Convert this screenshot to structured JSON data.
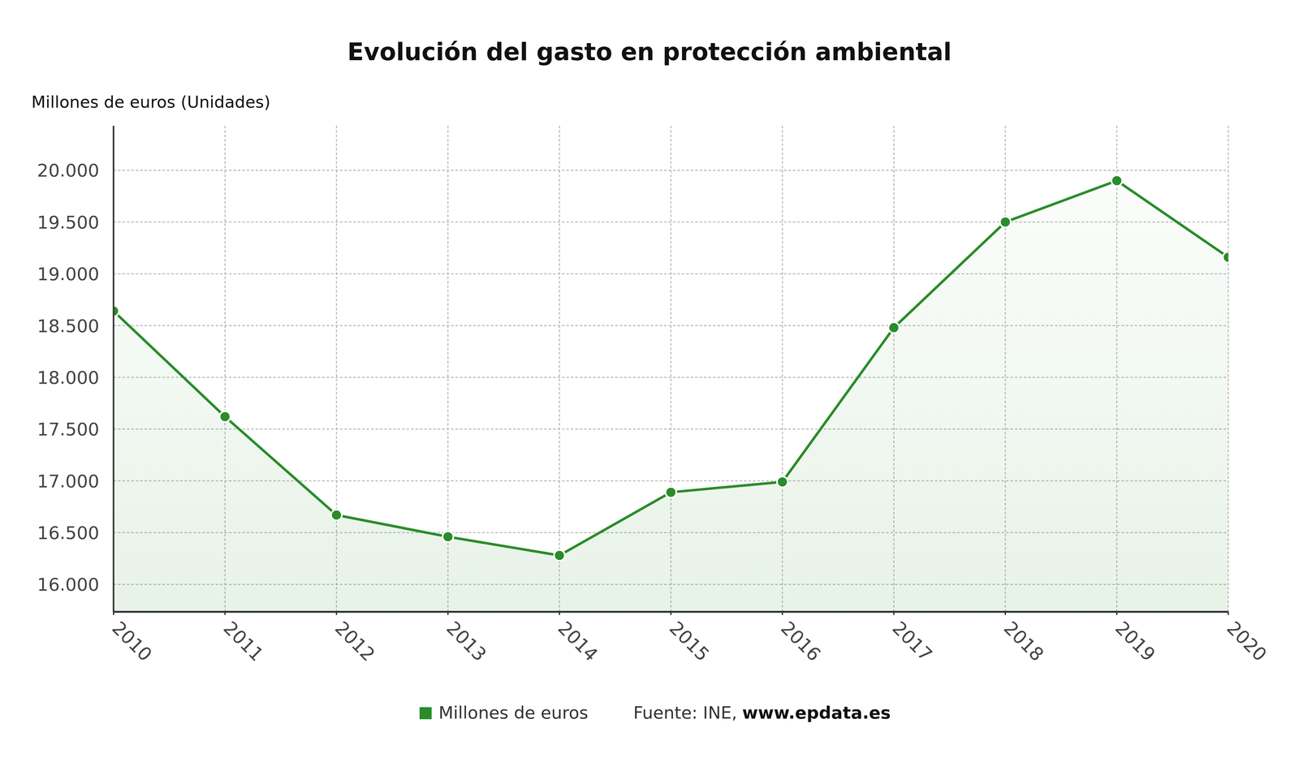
{
  "chart_data": {
    "type": "line",
    "title": "Evolución del gasto en protección ambiental",
    "y_label": "Millones de euros (Unidades)",
    "categories": [
      "2010",
      "2011",
      "2012",
      "2013",
      "2014",
      "2015",
      "2016",
      "2017",
      "2018",
      "2019",
      "2020"
    ],
    "series": [
      {
        "name": "Millones de euros",
        "color": "#2a8c2a",
        "marker": "circle",
        "line_style": "solid",
        "values": [
          18640,
          17620,
          16670,
          16460,
          16280,
          16890,
          16990,
          18480,
          19500,
          19900,
          19160
        ]
      }
    ],
    "ylim": [
      15735,
      20430
    ],
    "yticks": [
      {
        "value": 16000,
        "label": "16.000"
      },
      {
        "value": 16500,
        "label": "16.500"
      },
      {
        "value": 17000,
        "label": "17.000"
      },
      {
        "value": 17500,
        "label": "17.500"
      },
      {
        "value": 18000,
        "label": "18.000"
      },
      {
        "value": 18500,
        "label": "18.500"
      },
      {
        "value": 19000,
        "label": "19.000"
      },
      {
        "value": 19500,
        "label": "19.500"
      },
      {
        "value": 20000,
        "label": "20.000"
      }
    ],
    "grid": true,
    "legend": "bottom",
    "source": "Fuente: INE,",
    "source_url": "www.epdata.es"
  }
}
